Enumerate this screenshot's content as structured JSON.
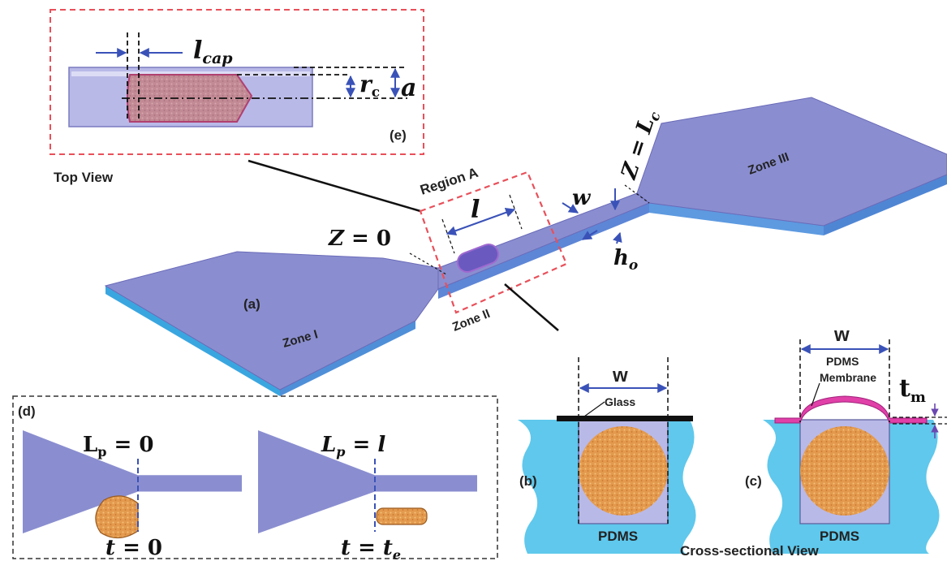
{
  "colors": {
    "channel_top": "#8b8fd0",
    "channel_side": "#5d86d6",
    "channel_front": "#3aa6e0",
    "pdms": "#5fc8ec",
    "particle": "#c89a8e",
    "particle_orange": "#e6a055",
    "membrane": "#e040a8",
    "region_box": "#e8505a",
    "arrow": "#3a52b8"
  },
  "panel_e": {
    "label": "(e)",
    "caption": "Top View",
    "l_cap_label": "l_cap",
    "rc_label": "r_c",
    "a_label": "a"
  },
  "main": {
    "label": "(a)",
    "zone1": "Zone I",
    "zone2": "Zone II",
    "zone3": "Zone III",
    "region": "Region A",
    "z0": "Z = 0",
    "zlc": "Z = L_c",
    "w": "w",
    "l": "l",
    "h0": "h_o"
  },
  "panel_d": {
    "label": "(d)",
    "lp0": "L_p = 0",
    "lpl": "L_p = l",
    "t0": "t = 0",
    "te": "t = t_e"
  },
  "panel_b": {
    "label": "(b)",
    "w": "w",
    "glass": "Glass",
    "pdms": "PDMS"
  },
  "panel_c": {
    "label": "(c)",
    "w": "w",
    "membrane": "PDMS Membrane",
    "membrane_line1": "PDMS",
    "membrane_line2": "Membrane",
    "tm": "t_m",
    "pdms": "PDMS"
  },
  "cross_section_caption": "Cross-sectional View"
}
